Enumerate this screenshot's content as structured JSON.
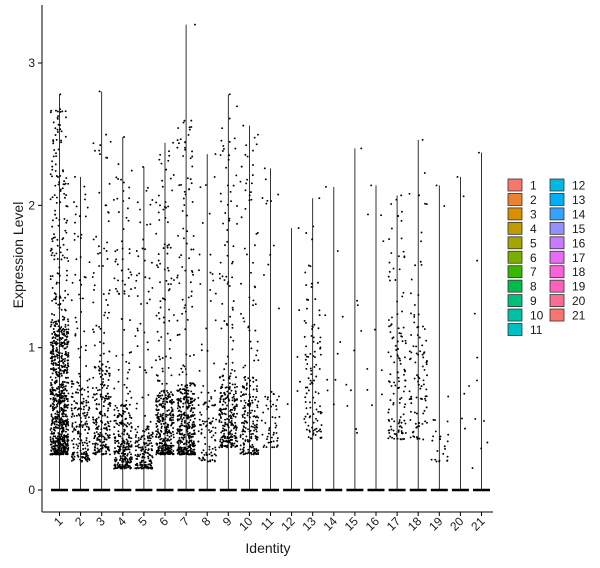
{
  "chart_data": {
    "type": "scatter",
    "subtype": "violin-jitter",
    "title": "",
    "xlabel": "Identity",
    "ylabel": "Expression Level",
    "categories": [
      "1",
      "2",
      "3",
      "4",
      "5",
      "6",
      "7",
      "8",
      "9",
      "10",
      "11",
      "12",
      "13",
      "14",
      "15",
      "16",
      "17",
      "18",
      "19",
      "20",
      "21"
    ],
    "ylim": [
      -0.18,
      3.4
    ],
    "yticks": [
      0,
      1,
      2,
      3
    ],
    "grid": false,
    "legend_position": "right",
    "legend_columns": [
      [
        "1",
        "2",
        "3",
        "4",
        "5",
        "6",
        "7",
        "8",
        "9",
        "10",
        "11"
      ],
      [
        "12",
        "13",
        "14",
        "15",
        "16",
        "17",
        "18",
        "19",
        "20",
        "21"
      ]
    ],
    "colors": [
      "#F8766D",
      "#EA8331",
      "#D89000",
      "#C09B00",
      "#A3A500",
      "#7CAE00",
      "#39B600",
      "#00BB4E",
      "#00BF7D",
      "#00C1A3",
      "#00BFC4",
      "#00BAE0",
      "#00B0F6",
      "#35A2FF",
      "#9590FF",
      "#C77CFF",
      "#E76BF3",
      "#FA62DB",
      "#FF62BC",
      "#FF6C91",
      "#F8766D"
    ],
    "series": [
      {
        "name": "1",
        "max": 2.78,
        "n_expr": 900,
        "core_lo": 0.25,
        "core_hi": 1.2,
        "sparse_hi": 2.7
      },
      {
        "name": "2",
        "max": 2.2,
        "n_expr": 220,
        "core_lo": 0.2,
        "core_hi": 0.8,
        "sparse_hi": 2.15
      },
      {
        "name": "3",
        "max": 2.8,
        "n_expr": 260,
        "core_lo": 0.25,
        "core_hi": 0.9,
        "sparse_hi": 2.5
      },
      {
        "name": "4",
        "max": 2.48,
        "n_expr": 300,
        "core_lo": 0.15,
        "core_hi": 0.6,
        "sparse_hi": 2.3
      },
      {
        "name": "5",
        "max": 2.27,
        "n_expr": 200,
        "core_lo": 0.15,
        "core_hi": 0.45,
        "sparse_hi": 2.2
      },
      {
        "name": "6",
        "max": 2.44,
        "n_expr": 380,
        "core_lo": 0.25,
        "core_hi": 0.7,
        "sparse_hi": 2.4
      },
      {
        "name": "7",
        "max": 3.27,
        "n_expr": 420,
        "core_lo": 0.25,
        "core_hi": 0.75,
        "sparse_hi": 2.6
      },
      {
        "name": "8",
        "max": 2.36,
        "n_expr": 110,
        "core_lo": 0.2,
        "core_hi": 0.7,
        "sparse_hi": 2.2
      },
      {
        "name": "9",
        "max": 2.78,
        "n_expr": 300,
        "core_lo": 0.3,
        "core_hi": 0.8,
        "sparse_hi": 2.7
      },
      {
        "name": "10",
        "max": 2.56,
        "n_expr": 230,
        "core_lo": 0.25,
        "core_hi": 0.8,
        "sparse_hi": 2.5
      },
      {
        "name": "11",
        "max": 2.26,
        "n_expr": 60,
        "core_lo": 0.3,
        "core_hi": 0.7,
        "sparse_hi": 2.2
      },
      {
        "name": "12",
        "max": 1.84,
        "n_expr": 6,
        "core_lo": 0.5,
        "core_hi": 1.0,
        "sparse_hi": 1.8
      },
      {
        "name": "13",
        "max": 2.05,
        "n_expr": 110,
        "core_lo": 0.35,
        "core_hi": 1.2,
        "sparse_hi": 2.0
      },
      {
        "name": "14",
        "max": 2.13,
        "n_expr": 10,
        "core_lo": 0.6,
        "core_hi": 1.4,
        "sparse_hi": 2.1
      },
      {
        "name": "15",
        "max": 2.4,
        "n_expr": 10,
        "core_lo": 0.4,
        "core_hi": 1.2,
        "sparse_hi": 2.35
      },
      {
        "name": "16",
        "max": 2.14,
        "n_expr": 10,
        "core_lo": 0.35,
        "core_hi": 1.2,
        "sparse_hi": 2.1
      },
      {
        "name": "17",
        "max": 2.07,
        "n_expr": 130,
        "core_lo": 0.35,
        "core_hi": 1.2,
        "sparse_hi": 2.05
      },
      {
        "name": "18",
        "max": 2.46,
        "n_expr": 100,
        "core_lo": 0.35,
        "core_hi": 1.3,
        "sparse_hi": 2.3
      },
      {
        "name": "19",
        "max": 2.14,
        "n_expr": 25,
        "core_lo": 0.2,
        "core_hi": 0.5,
        "sparse_hi": 2.0
      },
      {
        "name": "20",
        "max": 2.2,
        "n_expr": 6,
        "core_lo": 0.4,
        "core_hi": 1.4,
        "sparse_hi": 2.15
      },
      {
        "name": "21",
        "max": 2.37,
        "n_expr": 10,
        "core_lo": 0.15,
        "core_hi": 0.6,
        "sparse_hi": 2.3
      }
    ]
  }
}
